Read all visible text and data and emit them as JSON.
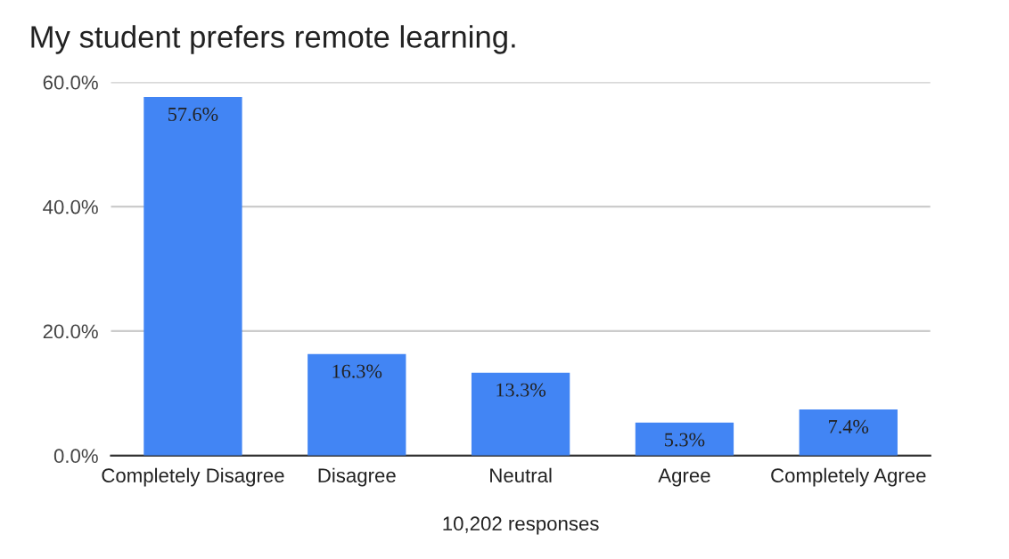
{
  "chart_data": {
    "type": "bar",
    "title": "My student prefers remote learning.",
    "xlabel": "10,202 responses",
    "categories": [
      "Completely Disagree",
      "Disagree",
      "Neutral",
      "Agree",
      "Completely Agree"
    ],
    "values": [
      57.6,
      16.3,
      13.3,
      5.3,
      7.4
    ],
    "value_labels": [
      "57.6%",
      "16.3%",
      "13.3%",
      "5.3%",
      "7.4%"
    ],
    "color": "#4285f4",
    "ylim": [
      0,
      60
    ],
    "yticks": [
      {
        "value": 0,
        "label": "0.0%"
      },
      {
        "value": 20,
        "label": "20.0%"
      },
      {
        "value": 40,
        "label": "40.0%"
      },
      {
        "value": 60,
        "label": "60.0%"
      }
    ],
    "grid": "y"
  }
}
